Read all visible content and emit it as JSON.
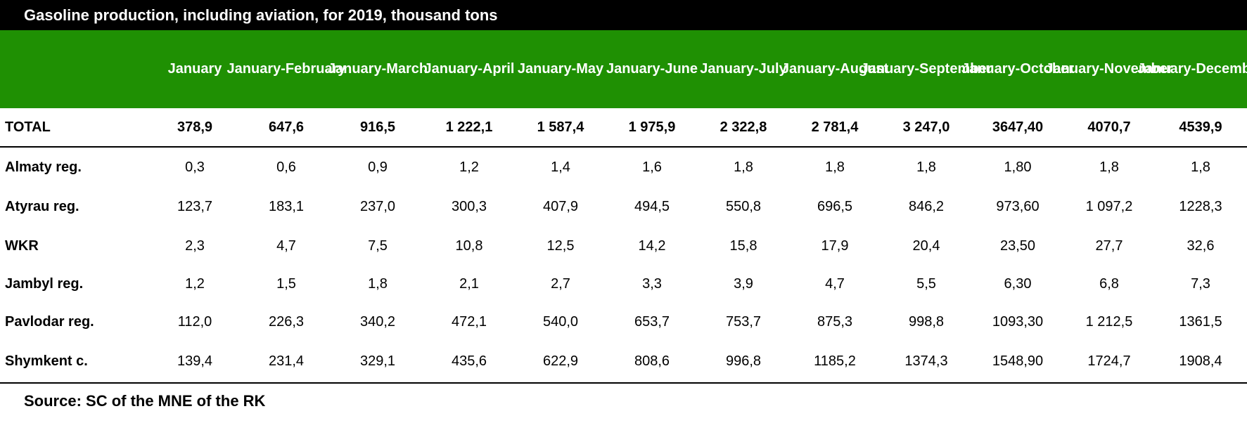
{
  "title": "Gasoline production, including aviation, for 2019, thousand tons",
  "source": "Source: SC of the MNE of the RK",
  "colors": {
    "title_bg": "#000000",
    "header_bg": "#1f9003",
    "header_text": "#ffffff"
  },
  "chart_data": {
    "type": "table",
    "title": "Gasoline production, including aviation, for 2019, thousand tons",
    "columns": [
      "January",
      "January-February",
      "January-March",
      "January-April",
      "January-May",
      "January-June",
      "January-July",
      "January-August",
      "January-September",
      "January-October",
      "January-November",
      "January-December"
    ],
    "header_lines": [
      [
        "January",
        ""
      ],
      [
        "January-",
        "February"
      ],
      [
        "January-",
        "March"
      ],
      [
        "January-",
        "April"
      ],
      [
        "January-",
        "May"
      ],
      [
        "January-",
        "June"
      ],
      [
        "January-",
        "July"
      ],
      [
        "January-",
        "August"
      ],
      [
        "January-",
        "September"
      ],
      [
        "January-",
        "October"
      ],
      [
        "January-",
        "November"
      ],
      [
        "January-",
        "December"
      ]
    ],
    "rows": [
      {
        "label": "TOTAL",
        "values": [
          "378,9",
          "647,6",
          "916,5",
          "1 222,1",
          "1 587,4",
          "1 975,9",
          "2 322,8",
          "2 781,4",
          "3 247,0",
          "3647,40",
          "4070,7",
          "4539,9"
        ]
      },
      {
        "label": "Almaty reg.",
        "values": [
          "0,3",
          "0,6",
          "0,9",
          "1,2",
          "1,4",
          "1,6",
          "1,8",
          "1,8",
          "1,8",
          "1,80",
          "1,8",
          "1,8"
        ]
      },
      {
        "label": "Atyrau reg.",
        "values": [
          "123,7",
          "183,1",
          "237,0",
          "300,3",
          "407,9",
          "494,5",
          "550,8",
          "696,5",
          "846,2",
          "973,60",
          "1 097,2",
          "1228,3"
        ]
      },
      {
        "label": "WKR",
        "values": [
          "2,3",
          "4,7",
          "7,5",
          "10,8",
          "12,5",
          "14,2",
          "15,8",
          "17,9",
          "20,4",
          "23,50",
          "27,7",
          "32,6"
        ]
      },
      {
        "label": "Jambyl reg.",
        "values": [
          "1,2",
          "1,5",
          "1,8",
          "2,1",
          "2,7",
          "3,3",
          "3,9",
          "4,7",
          "5,5",
          "6,30",
          "6,8",
          "7,3"
        ]
      },
      {
        "label": "Pavlodar reg.",
        "values": [
          "112,0",
          "226,3",
          "340,2",
          "472,1",
          "540,0",
          "653,7",
          "753,7",
          "875,3",
          "998,8",
          "1093,30",
          "1 212,5",
          "1361,5"
        ]
      },
      {
        "label": "Shymkent c.",
        "values": [
          "139,4",
          "231,4",
          "329,1",
          "435,6",
          "622,9",
          "808,6",
          "996,8",
          "1185,2",
          "1374,3",
          "1548,90",
          "1724,7",
          "1908,4"
        ]
      }
    ]
  }
}
